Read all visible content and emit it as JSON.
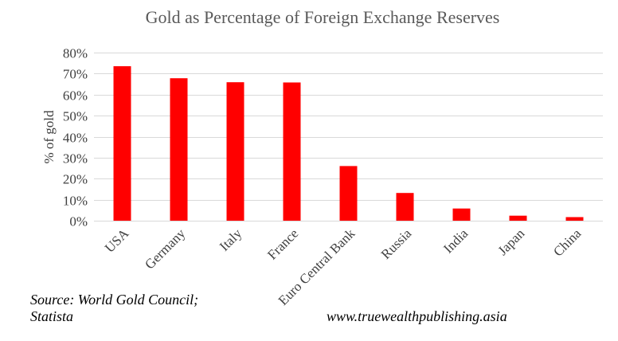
{
  "chart_data": {
    "type": "bar",
    "title": "Gold as Percentage of Foreign Exchange Reserves",
    "ylabel": "% of gold",
    "xlabel": "",
    "categories": [
      "USA",
      "Germany",
      "Italy",
      "France",
      "Euro Central Bank",
      "Russia",
      "India",
      "Japan",
      "China"
    ],
    "values": [
      73.5,
      67.8,
      65.9,
      65.8,
      26,
      13.2,
      5.8,
      2.4,
      1.7
    ],
    "ylim": [
      0,
      80
    ],
    "yticks": [
      "0%",
      "10%",
      "20%",
      "30%",
      "40%",
      "50%",
      "60%",
      "70%",
      "80%"
    ],
    "grid": true,
    "legend": "none",
    "bar_color": "#ff0000",
    "grid_color": "#d9d9d9"
  },
  "footer": {
    "source_line1": "Source: World Gold Council;",
    "source_line2": "Statista",
    "website": "www.truewealthpublishing.asia"
  }
}
